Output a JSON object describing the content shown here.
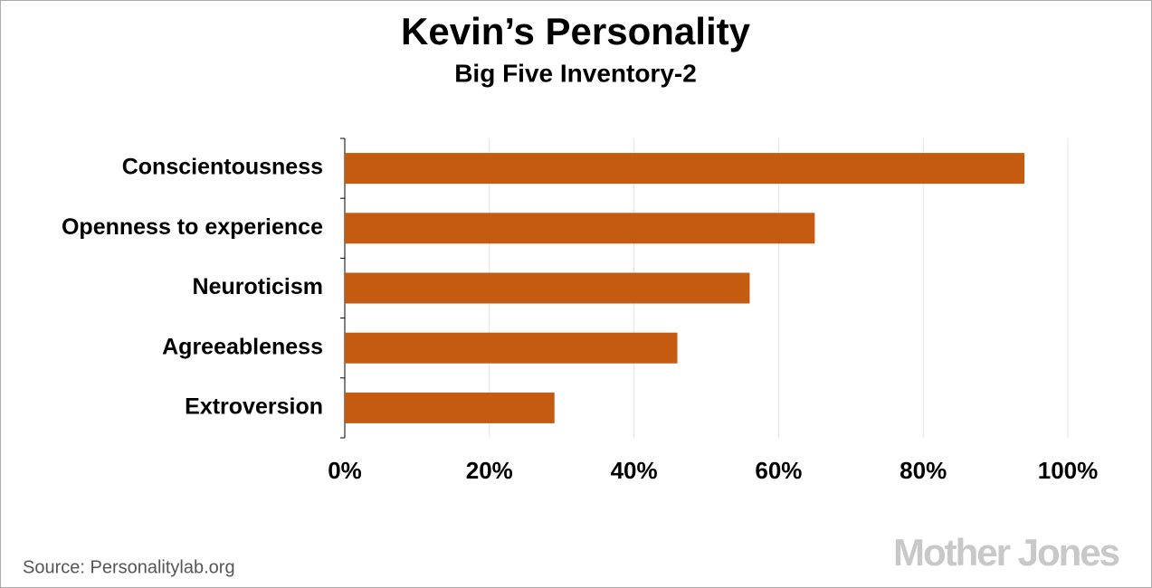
{
  "chart_data": {
    "type": "hbar",
    "title": "Kevin’s Personality",
    "subtitle": "Big Five Inventory-2",
    "categories": [
      "Conscientousness",
      "Openness to experience",
      "Neuroticism",
      "Agreeableness",
      "Extroversion"
    ],
    "values": [
      94,
      65,
      56,
      46,
      29
    ],
    "color": "#c55a11",
    "xlim": [
      0,
      100
    ],
    "xticks": [
      {
        "value": 0,
        "label": "0%"
      },
      {
        "value": 20,
        "label": "20%"
      },
      {
        "value": 40,
        "label": "40%"
      },
      {
        "value": 60,
        "label": "60%"
      },
      {
        "value": 80,
        "label": "80%"
      },
      {
        "value": 100,
        "label": "100%"
      }
    ],
    "grid": true,
    "source": "Source:  Personalitylab.org",
    "logo": "Mother Jones"
  }
}
